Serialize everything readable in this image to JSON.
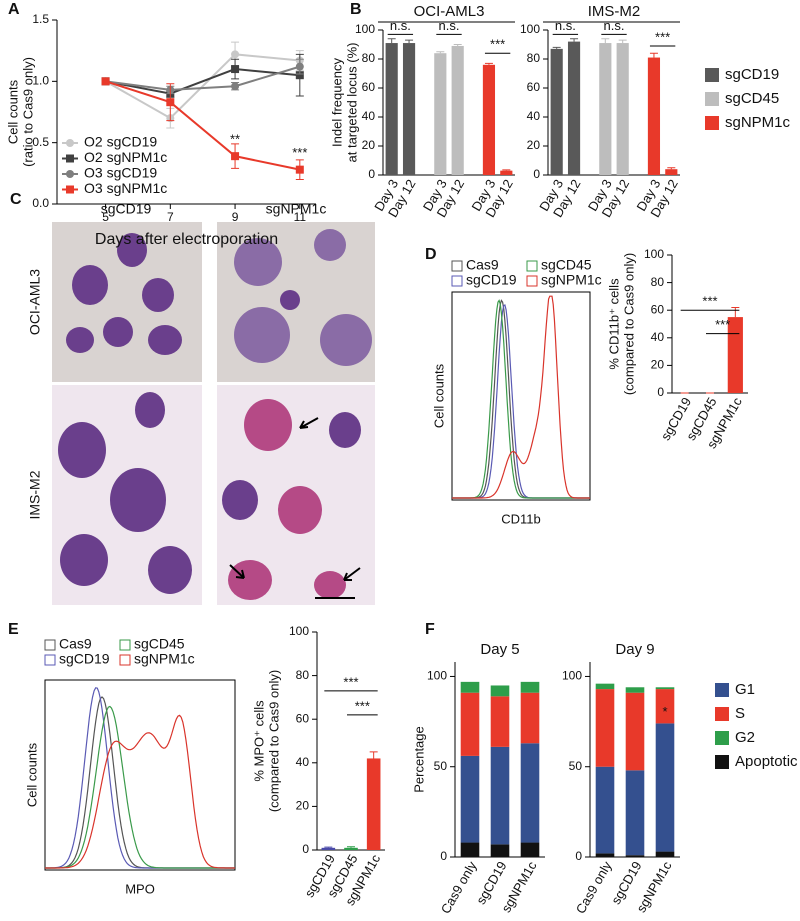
{
  "micrographs": {
    "label": "C",
    "columns": [
      "sgCD19",
      "sgNPM1c"
    ],
    "rows": [
      "OCI-AML3",
      "IMS-M2"
    ]
  },
  "chart_data": [
    {
      "type": "line",
      "panel": "A",
      "xlabel": "Days after electroporation",
      "ylabel": [
        "Cell counts",
        "(ratio to Cas9 only)"
      ],
      "x": [
        5,
        7,
        9,
        11
      ],
      "xlim": [
        3.5,
        11.5
      ],
      "xticks": [
        5,
        7,
        9,
        11
      ],
      "ylim": [
        0,
        1.5
      ],
      "yticks": [
        {
          "value": 0,
          "label": "0.0"
        },
        {
          "value": 0.5,
          "label": "0.5"
        },
        {
          "value": 1,
          "label": "1.0"
        },
        {
          "value": 1.5,
          "label": "1.5"
        }
      ],
      "series": [
        {
          "name": "O2 sgCD19",
          "color": "#c8c8c8",
          "marker": "circle",
          "values": [
            1.0,
            0.7,
            1.22,
            1.17
          ],
          "errors": [
            0,
            0.08,
            0.1,
            0.08
          ]
        },
        {
          "name": "O2 sgNPM1c",
          "color": "#404040",
          "marker": "square",
          "values": [
            1.0,
            0.9,
            1.1,
            1.05
          ],
          "errors": [
            0,
            0.03,
            0.08,
            0.17
          ]
        },
        {
          "name": "O3 sgCD19",
          "color": "#7f7f7f",
          "marker": "circle",
          "values": [
            1.0,
            0.93,
            0.96,
            1.12
          ],
          "errors": [
            0,
            0.03,
            0.03,
            0.06
          ]
        },
        {
          "name": "O3 sgNPM1c",
          "color": "#e8392a",
          "marker": "square",
          "values": [
            1.0,
            0.83,
            0.39,
            0.28
          ],
          "errors": [
            0,
            0.15,
            0.1,
            0.08
          ]
        }
      ],
      "annotations": [
        "**",
        "***"
      ]
    },
    {
      "type": "bar",
      "panel": "B",
      "title": "OCI-AML3",
      "ylabel": [
        "Indel frequency",
        "at targeted locus (%)"
      ],
      "categories": [
        "Day 3",
        "Day 12",
        "Day 3",
        "Day 12",
        "Day 3",
        "Day 12"
      ],
      "values": [
        91,
        91,
        84,
        89,
        76,
        3
      ],
      "errors": [
        3,
        2,
        1,
        1,
        1,
        0.5
      ],
      "colors": [
        "#595959",
        "#595959",
        "#bdbdbd",
        "#bdbdbd",
        "#e8392a",
        "#e8392a"
      ],
      "ylim": [
        0,
        100
      ],
      "yticks": [
        0,
        20,
        40,
        60,
        80,
        100
      ],
      "annotations": [
        "n.s.",
        "n.s.",
        "***"
      ]
    },
    {
      "type": "bar",
      "title": "IMS-M2",
      "categories": [
        "Day 3",
        "Day 12",
        "Day 3",
        "Day 12",
        "Day 3",
        "Day 12"
      ],
      "values": [
        87,
        92,
        91,
        91,
        81,
        4
      ],
      "errors": [
        1,
        2,
        3,
        2,
        3,
        1
      ],
      "colors": [
        "#595959",
        "#595959",
        "#bdbdbd",
        "#bdbdbd",
        "#e8392a",
        "#e8392a"
      ],
      "ylim": [
        0,
        100
      ],
      "yticks": [
        0,
        20,
        40,
        60,
        80,
        100
      ],
      "annotations": [
        "n.s.",
        "n.s.",
        "***"
      ],
      "legend": [
        {
          "name": "sgCD19",
          "color": "#595959"
        },
        {
          "name": "sgCD45",
          "color": "#bdbdbd"
        },
        {
          "name": "sgNPM1c",
          "color": "#e8392a"
        }
      ]
    },
    {
      "type": "flow",
      "panel": "D",
      "xlabel": "CD11b",
      "ylabel": [
        "Cell counts"
      ],
      "series": [
        {
          "name": "Cas9",
          "color": "#555555"
        },
        {
          "name": "sgCD19",
          "color": "#5a5ab4"
        },
        {
          "name": "sgCD45",
          "color": "#3a9a4a"
        },
        {
          "name": "sgNPM1c",
          "color": "#d9342b"
        }
      ]
    },
    {
      "type": "bar",
      "ylabel": [
        "% CD11b⁺ cells",
        "(compared to Cas9 only)"
      ],
      "categories": [
        "sgCD19",
        "sgCD45",
        "sgNPM1c"
      ],
      "values": [
        0,
        0,
        55
      ],
      "errors": [
        0,
        0,
        7
      ],
      "colors": [
        "#e8392a",
        "#e8392a",
        "#e8392a"
      ],
      "ylim": [
        0,
        100
      ],
      "yticks": [
        0,
        20,
        40,
        60,
        80,
        100
      ],
      "annotations": [
        "***",
        "***"
      ]
    },
    {
      "type": "flow",
      "panel": "E",
      "xlabel": "MPO",
      "ylabel": [
        "Cell counts"
      ],
      "series": [
        {
          "name": "Cas9",
          "color": "#555555"
        },
        {
          "name": "sgCD19",
          "color": "#5a5ab4"
        },
        {
          "name": "sgCD45",
          "color": "#3a9a4a"
        },
        {
          "name": "sgNPM1c",
          "color": "#d9342b"
        }
      ]
    },
    {
      "type": "bar",
      "ylabel": [
        "% MPO⁺ cells",
        "(compared to Cas9 only)"
      ],
      "categories": [
        "sgCD19",
        "sgCD45",
        "sgNPM1c"
      ],
      "values": [
        1,
        1,
        42
      ],
      "errors": [
        0.3,
        0.5,
        3
      ],
      "colors": [
        "#4a4aa8",
        "#2e9e4a",
        "#e8392a"
      ],
      "ylim": [
        0,
        100
      ],
      "yticks": [
        0,
        20,
        40,
        60,
        80,
        100
      ],
      "annotations": [
        "***",
        "***"
      ]
    },
    {
      "type": "stacked",
      "panel": "F",
      "title": "Day 5",
      "ylabel": [
        "Percentage"
      ],
      "categories": [
        "Cas9 only",
        "sgCD19",
        "sgNPM1c"
      ],
      "ylim": [
        0,
        108
      ],
      "yticks": [
        0,
        50,
        100
      ],
      "series": [
        {
          "name": "G1",
          "color": "#34508f",
          "values": [
            48,
            54,
            55
          ]
        },
        {
          "name": "S",
          "color": "#e8392a",
          "values": [
            35,
            28,
            28
          ]
        },
        {
          "name": "G2",
          "color": "#2e9e4a",
          "values": [
            6,
            6,
            6
          ]
        },
        {
          "name": "Apoptotic",
          "color": "#111111",
          "values": [
            8,
            7,
            8
          ]
        }
      ]
    },
    {
      "type": "stacked",
      "title": "Day 9",
      "categories": [
        "Cas9 only",
        "sgCD19",
        "sgNPM1c"
      ],
      "ylim": [
        0,
        108
      ],
      "yticks": [
        0,
        50,
        100
      ],
      "series": [
        {
          "name": "G1",
          "color": "#34508f",
          "values": [
            48,
            47,
            71
          ]
        },
        {
          "name": "S",
          "color": "#e8392a",
          "values": [
            43,
            43,
            19
          ]
        },
        {
          "name": "G2",
          "color": "#2e9e4a",
          "values": [
            3,
            3,
            1
          ]
        },
        {
          "name": "Apoptotic",
          "color": "#111111",
          "values": [
            2,
            1,
            3
          ]
        }
      ],
      "annotations": [
        "*"
      ],
      "legend": true
    }
  ]
}
